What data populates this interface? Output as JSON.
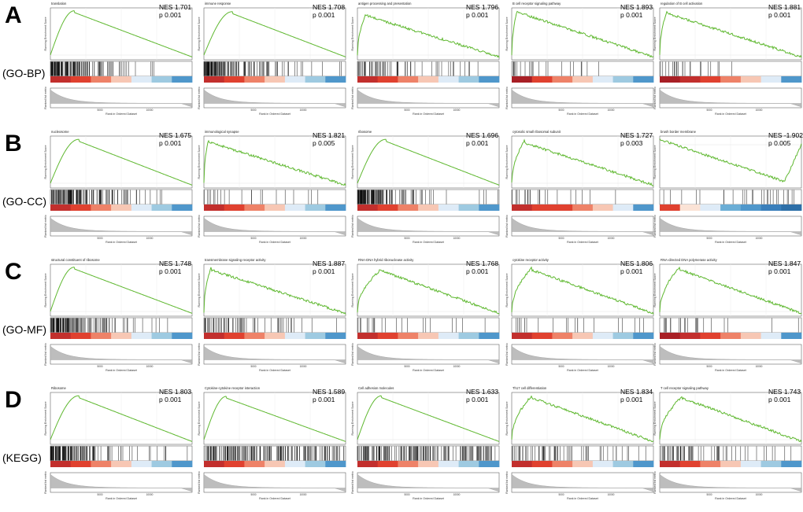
{
  "figure": {
    "rows": [
      {
        "letter": "A",
        "group": "(GO-BP)"
      },
      {
        "letter": "B",
        "group": "(GO-CC)"
      },
      {
        "letter": "C",
        "group": "(GO-MF)"
      },
      {
        "letter": "D",
        "group": "(KEGG)"
      }
    ],
    "panel_labels": {
      "y_es": "Running Enrichment Score",
      "y_rank": "Ranked list metric",
      "x": "Rank in Ordered Dataset",
      "xtick_1": "5000",
      "xtick_2": "10000"
    },
    "colors": {
      "es_line": "#5fb830",
      "hit": "#000000",
      "metric_fill": "#bdbdbd",
      "red_dark": "#a81f25",
      "blue_dark": "#2d6fa8"
    }
  },
  "chart_data": [
    {
      "type": "line",
      "row": 0,
      "col": 0,
      "title": "translation",
      "nes": "NES 1.701",
      "p": "p 0.001",
      "peak_rank": 0.17,
      "peak_es": 0.94,
      "rise": "smooth",
      "hit_density": "dense-left",
      "bar_palette": [
        "#c22f2d",
        "#e0412f",
        "#ee8268",
        "#f7c7b4",
        "#deebf7",
        "#9ecae1",
        "#4f97cb"
      ]
    },
    {
      "type": "line",
      "row": 0,
      "col": 1,
      "title": "immune response",
      "nes": "NES 1.708",
      "p": "p 0.001",
      "peak_rank": 0.2,
      "peak_es": 0.92,
      "rise": "smooth",
      "hit_density": "dense-left",
      "bar_palette": [
        "#c22f2d",
        "#e0412f",
        "#ee8268",
        "#f7c7b4",
        "#deebf7",
        "#9ecae1",
        "#4f97cb"
      ]
    },
    {
      "type": "line",
      "row": 0,
      "col": 2,
      "title": "antigen processing and presentation",
      "nes": "NES 1.796",
      "p": "p 0.001",
      "peak_rank": 0.06,
      "peak_es": 0.88,
      "rise": "steep",
      "hit_density": "medium",
      "bar_palette": [
        "#c22f2d",
        "#e0412f",
        "#ee8268",
        "#f7c7b4",
        "#deebf7",
        "#9ecae1",
        "#4f97cb"
      ]
    },
    {
      "type": "line",
      "row": 0,
      "col": 3,
      "title": "B cell receptor signaling pathway",
      "nes": "NES 1.893",
      "p": "p 0.001",
      "peak_rank": 0.04,
      "peak_es": 0.95,
      "rise": "steep",
      "hit_density": "sparse",
      "bar_palette": [
        "#a81f25",
        "#e0412f",
        "#ee8268",
        "#f7c7b4",
        "#deebf7",
        "#9ecae1",
        "#4f97cb"
      ]
    },
    {
      "type": "line",
      "row": 0,
      "col": 4,
      "title": "regulation of B cell activation",
      "nes": "NES 1.881",
      "p": "p 0.001",
      "peak_rank": 0.05,
      "peak_es": 0.93,
      "rise": "steep",
      "hit_density": "sparse",
      "bar_palette": [
        "#a81f25",
        "#c22f2d",
        "#e0412f",
        "#ee8268",
        "#f7c7b4",
        "#deebf7",
        "#4f97cb"
      ]
    },
    {
      "type": "line",
      "row": 1,
      "col": 0,
      "title": "nucleosome",
      "nes": "NES 1.675",
      "p": "p 0.001",
      "peak_rank": 0.2,
      "peak_es": 0.93,
      "rise": "smooth",
      "hit_density": "dense-left",
      "bar_palette": [
        "#c22f2d",
        "#e0412f",
        "#ee8268",
        "#f7c7b4",
        "#deebf7",
        "#9ecae1",
        "#4f97cb"
      ]
    },
    {
      "type": "line",
      "row": 1,
      "col": 1,
      "title": "immunological synapse",
      "nes": "NES 1.821",
      "p": "p 0.005",
      "peak_rank": 0.03,
      "peak_es": 0.92,
      "rise": "steep",
      "hit_density": "sparse",
      "bar_palette": [
        "#c22f2d",
        "#e0412f",
        "#ee8268",
        "#f7c7b4",
        "#deebf7",
        "#9ecae1",
        "#4f97cb"
      ]
    },
    {
      "type": "line",
      "row": 1,
      "col": 2,
      "title": "ribosome",
      "nes": "NES 1.696",
      "p": "p 0.001",
      "peak_rank": 0.2,
      "peak_es": 0.93,
      "rise": "smooth",
      "hit_density": "dense-left",
      "bar_palette": [
        "#c22f2d",
        "#e0412f",
        "#ee8268",
        "#f7c7b4",
        "#deebf7",
        "#9ecae1",
        "#4f97cb"
      ]
    },
    {
      "type": "line",
      "row": 1,
      "col": 3,
      "title": "cytosolic small ribosomal subunit",
      "nes": "NES 1.727",
      "p": "p 0.003",
      "peak_rank": 0.09,
      "peak_es": 0.9,
      "rise": "steep",
      "hit_density": "sparse",
      "bar_palette": [
        "#c22f2d",
        "#e0412f",
        "#e0412f",
        "#ee8268",
        "#f7c7b4",
        "#deebf7",
        "#4f97cb"
      ]
    },
    {
      "type": "line",
      "row": 1,
      "col": 4,
      "title": "brush border membrane",
      "nes": "NES -1.902",
      "p": "p 0.005",
      "peak_rank": 0.88,
      "peak_es": -0.85,
      "rise": "negative",
      "hit_density": "sparse-right",
      "bar_palette": [
        "#e0412f",
        "#fbe3d6",
        "#deebf7",
        "#6baed6",
        "#4f97cb",
        "#3a7fbb",
        "#2d6fa8"
      ]
    },
    {
      "type": "line",
      "row": 2,
      "col": 0,
      "title": "structural constituent of ribosome",
      "nes": "NES 1.748",
      "p": "p 0.001",
      "peak_rank": 0.17,
      "peak_es": 0.94,
      "rise": "smooth",
      "hit_density": "dense-left",
      "bar_palette": [
        "#c22f2d",
        "#e0412f",
        "#ee8268",
        "#f7c7b4",
        "#deebf7",
        "#9ecae1",
        "#4f97cb"
      ]
    },
    {
      "type": "line",
      "row": 2,
      "col": 1,
      "title": "transmembrane signaling receptor activity",
      "nes": "NES 1.887",
      "p": "p 0.001",
      "peak_rank": 0.05,
      "peak_es": 0.92,
      "rise": "steep",
      "hit_density": "medium",
      "bar_palette": [
        "#c22f2d",
        "#e0412f",
        "#ee8268",
        "#f7c7b4",
        "#deebf7",
        "#9ecae1",
        "#4f97cb"
      ]
    },
    {
      "type": "line",
      "row": 2,
      "col": 2,
      "title": "RNA-DNA hybrid ribonuclease activity",
      "nes": "NES 1.768",
      "p": "p 0.001",
      "peak_rank": 0.17,
      "peak_es": 0.9,
      "rise": "steep",
      "hit_density": "sparse",
      "bar_palette": [
        "#c22f2d",
        "#e0412f",
        "#ee8268",
        "#f7c7b4",
        "#deebf7",
        "#9ecae1",
        "#4f97cb"
      ]
    },
    {
      "type": "line",
      "row": 2,
      "col": 3,
      "title": "cytokine receptor activity",
      "nes": "NES 1.806",
      "p": "p 0.001",
      "peak_rank": 0.14,
      "peak_es": 0.92,
      "rise": "steep",
      "hit_density": "sparse",
      "bar_palette": [
        "#c22f2d",
        "#e0412f",
        "#ee8268",
        "#f7c7b4",
        "#deebf7",
        "#9ecae1",
        "#4f97cb"
      ]
    },
    {
      "type": "line",
      "row": 2,
      "col": 4,
      "title": "RNA-directed DNA polymerase activity",
      "nes": "NES 1.847",
      "p": "p 0.001",
      "peak_rank": 0.14,
      "peak_es": 0.93,
      "rise": "steep",
      "hit_density": "sparse",
      "bar_palette": [
        "#a81f25",
        "#c22f2d",
        "#e0412f",
        "#ee8268",
        "#f7c7b4",
        "#deebf7",
        "#4f97cb"
      ]
    },
    {
      "type": "line",
      "row": 3,
      "col": 0,
      "title": "Ribosome",
      "nes": "NES 1.803",
      "p": "p 0.001",
      "peak_rank": 0.2,
      "peak_es": 0.93,
      "rise": "smooth",
      "hit_density": "dense-left",
      "bar_palette": [
        "#c22f2d",
        "#e0412f",
        "#ee8268",
        "#f7c7b4",
        "#deebf7",
        "#9ecae1",
        "#4f97cb"
      ]
    },
    {
      "type": "line",
      "row": 3,
      "col": 1,
      "title": "Cytokine-cytokine receptor interaction",
      "nes": "NES 1.589",
      "p": "p 0.001",
      "peak_rank": 0.16,
      "peak_es": 0.92,
      "rise": "smooth",
      "hit_density": "dense-all",
      "bar_palette": [
        "#c22f2d",
        "#e0412f",
        "#ee8268",
        "#f7c7b4",
        "#deebf7",
        "#9ecae1",
        "#4f97cb"
      ]
    },
    {
      "type": "line",
      "row": 3,
      "col": 2,
      "title": "Cell adhesion molecules",
      "nes": "NES 1.633",
      "p": "p 0.001",
      "peak_rank": 0.17,
      "peak_es": 0.93,
      "rise": "smooth",
      "hit_density": "dense-all",
      "bar_palette": [
        "#c22f2d",
        "#e0412f",
        "#ee8268",
        "#f7c7b4",
        "#deebf7",
        "#9ecae1",
        "#4f97cb"
      ]
    },
    {
      "type": "line",
      "row": 3,
      "col": 3,
      "title": "Th17 cell differentiation",
      "nes": "NES 1.834",
      "p": "p 0.001",
      "peak_rank": 0.14,
      "peak_es": 0.93,
      "rise": "steep",
      "hit_density": "medium",
      "bar_palette": [
        "#c22f2d",
        "#e0412f",
        "#ee8268",
        "#f7c7b4",
        "#deebf7",
        "#9ecae1",
        "#4f97cb"
      ]
    },
    {
      "type": "line",
      "row": 3,
      "col": 4,
      "title": "T cell receptor signaling pathway",
      "nes": "NES 1.743",
      "p": "p 0.001",
      "peak_rank": 0.16,
      "peak_es": 0.92,
      "rise": "steep",
      "hit_density": "medium",
      "bar_palette": [
        "#c22f2d",
        "#e0412f",
        "#ee8268",
        "#f7c7b4",
        "#deebf7",
        "#9ecae1",
        "#4f97cb"
      ]
    }
  ]
}
